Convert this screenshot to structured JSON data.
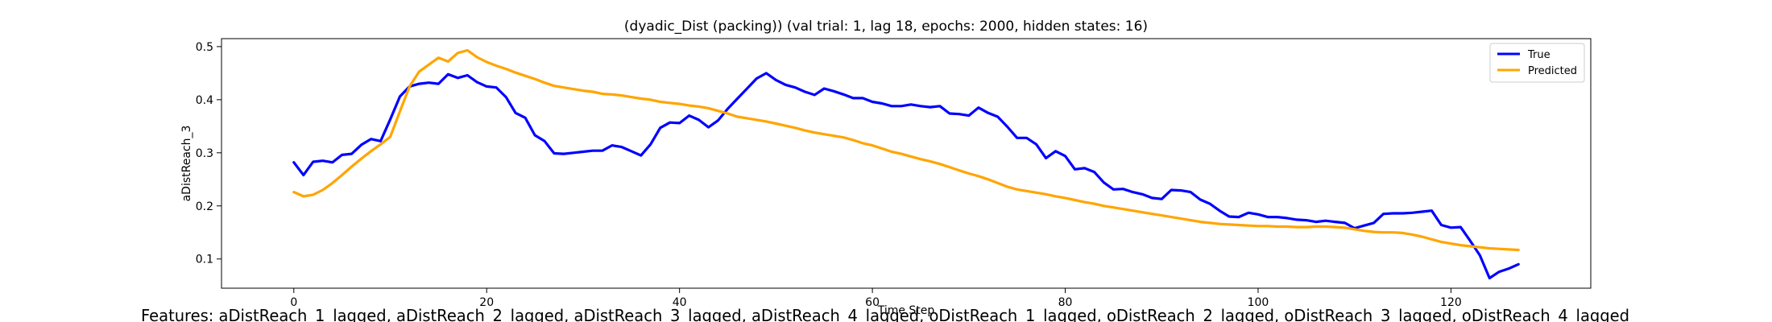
{
  "chart_data": {
    "type": "line",
    "title": "(dyadic_Dist (packing)) (val trial: 1, lag 18, epochs: 2000, hidden states: 16)",
    "xlabel": "Time Step",
    "ylabel": "aDistReach_3",
    "caption": "Features: aDistReach_1_lagged, aDistReach_2_lagged, aDistReach_3_lagged, aDistReach_4_lagged, oDistReach_1_lagged, oDistReach_2_lagged, oDistReach_3_lagged, oDistReach_4_lagged",
    "xlim": [
      -7.5,
      134.5
    ],
    "ylim": [
      0.045,
      0.515
    ],
    "x_ticks": [
      0,
      20,
      40,
      60,
      80,
      100,
      120
    ],
    "y_ticks": [
      0.1,
      0.2,
      0.3,
      0.4,
      0.5
    ],
    "grid": false,
    "legend": "top-right",
    "series": [
      {
        "name": "True",
        "color": "#0000ff",
        "x_start": 0,
        "values": [
          0.282,
          0.258,
          0.283,
          0.285,
          0.282,
          0.296,
          0.298,
          0.315,
          0.326,
          0.322,
          0.363,
          0.406,
          0.425,
          0.43,
          0.432,
          0.43,
          0.448,
          0.441,
          0.446,
          0.433,
          0.425,
          0.423,
          0.405,
          0.375,
          0.366,
          0.333,
          0.322,
          0.299,
          0.298,
          0.3,
          0.302,
          0.304,
          0.304,
          0.314,
          0.311,
          0.303,
          0.295,
          0.316,
          0.347,
          0.357,
          0.356,
          0.37,
          0.362,
          0.348,
          0.361,
          0.383,
          0.402,
          0.421,
          0.44,
          0.45,
          0.437,
          0.428,
          0.423,
          0.415,
          0.409,
          0.421,
          0.416,
          0.41,
          0.403,
          0.403,
          0.396,
          0.393,
          0.388,
          0.388,
          0.391,
          0.388,
          0.386,
          0.388,
          0.374,
          0.373,
          0.37,
          0.385,
          0.375,
          0.368,
          0.349,
          0.328,
          0.328,
          0.316,
          0.29,
          0.303,
          0.294,
          0.269,
          0.271,
          0.264,
          0.244,
          0.231,
          0.232,
          0.226,
          0.222,
          0.215,
          0.213,
          0.23,
          0.229,
          0.226,
          0.212,
          0.204,
          0.191,
          0.18,
          0.179,
          0.187,
          0.184,
          0.179,
          0.179,
          0.177,
          0.174,
          0.173,
          0.17,
          0.172,
          0.17,
          0.168,
          0.158,
          0.163,
          0.168,
          0.185,
          0.186,
          0.186,
          0.187,
          0.189,
          0.191,
          0.164,
          0.159,
          0.16,
          0.134,
          0.107,
          0.064,
          0.076,
          0.082,
          0.09
        ]
      },
      {
        "name": "Predicted",
        "color": "#ffa500",
        "x_start": 0,
        "values": [
          0.226,
          0.218,
          0.221,
          0.23,
          0.243,
          0.258,
          0.274,
          0.289,
          0.303,
          0.316,
          0.33,
          0.378,
          0.425,
          0.453,
          0.466,
          0.479,
          0.472,
          0.488,
          0.493,
          0.48,
          0.471,
          0.464,
          0.458,
          0.451,
          0.445,
          0.439,
          0.432,
          0.426,
          0.423,
          0.42,
          0.417,
          0.415,
          0.411,
          0.41,
          0.408,
          0.405,
          0.402,
          0.4,
          0.396,
          0.394,
          0.392,
          0.389,
          0.387,
          0.384,
          0.379,
          0.374,
          0.368,
          0.365,
          0.362,
          0.359,
          0.355,
          0.351,
          0.347,
          0.342,
          0.338,
          0.335,
          0.332,
          0.329,
          0.324,
          0.318,
          0.314,
          0.308,
          0.302,
          0.298,
          0.293,
          0.288,
          0.284,
          0.279,
          0.273,
          0.267,
          0.261,
          0.256,
          0.25,
          0.243,
          0.236,
          0.231,
          0.228,
          0.225,
          0.222,
          0.218,
          0.215,
          0.211,
          0.207,
          0.204,
          0.2,
          0.197,
          0.194,
          0.191,
          0.188,
          0.185,
          0.182,
          0.179,
          0.176,
          0.173,
          0.17,
          0.168,
          0.166,
          0.165,
          0.164,
          0.163,
          0.162,
          0.162,
          0.161,
          0.161,
          0.16,
          0.16,
          0.161,
          0.161,
          0.16,
          0.159,
          0.156,
          0.153,
          0.151,
          0.15,
          0.15,
          0.149,
          0.146,
          0.142,
          0.137,
          0.132,
          0.129,
          0.126,
          0.124,
          0.122,
          0.12,
          0.119,
          0.118,
          0.117
        ]
      }
    ]
  }
}
